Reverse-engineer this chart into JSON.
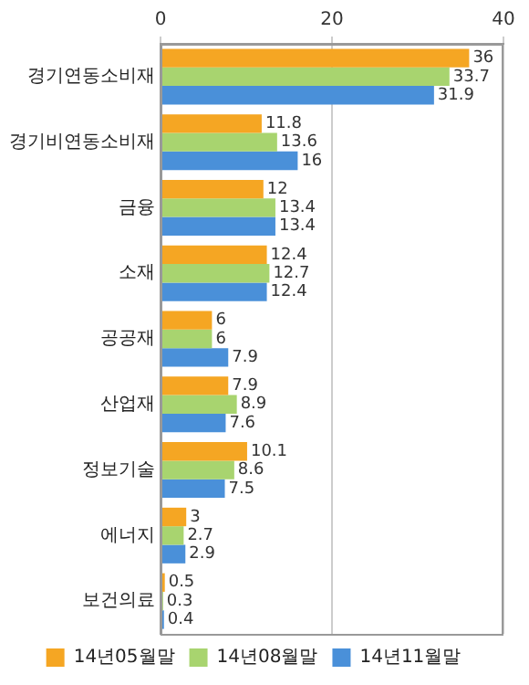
{
  "chart_data": {
    "type": "bar",
    "orientation": "horizontal",
    "categories": [
      "경기연동소비재",
      "경기비연동소비재",
      "금융",
      "소재",
      "공공재",
      "산업재",
      "정보기술",
      "에너지",
      "보건의료"
    ],
    "series": [
      {
        "name": "14년05월말",
        "color": "#f5a623",
        "values": [
          36,
          11.8,
          12,
          12.4,
          6,
          7.9,
          10.1,
          3,
          0.5
        ]
      },
      {
        "name": "14년08월말",
        "color": "#a8d46f",
        "values": [
          33.7,
          13.6,
          13.4,
          12.7,
          6,
          8.9,
          8.6,
          2.7,
          0.3
        ]
      },
      {
        "name": "14년11월말",
        "color": "#4a90d9",
        "values": [
          31.9,
          16,
          13.4,
          12.4,
          7.9,
          7.6,
          7.5,
          2.9,
          0.4
        ]
      }
    ],
    "xlim": [
      0,
      40
    ],
    "xticks": [
      0,
      20,
      40
    ],
    "grid": "x",
    "legend": "bottom",
    "data_labels": true
  }
}
